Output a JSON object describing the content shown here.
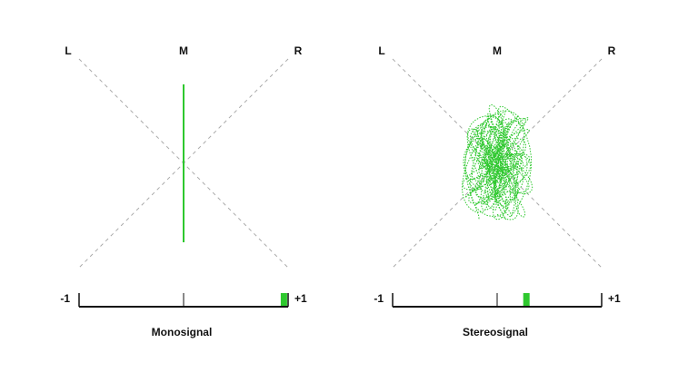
{
  "panels": [
    {
      "labels": {
        "left": "L",
        "mid": "M",
        "right": "R"
      },
      "scale": {
        "min": {
          "value": -1,
          "label": "-1"
        },
        "max": {
          "value": 1,
          "label": "+1"
        }
      },
      "correlation": 0.96,
      "caption": "Monosignal"
    },
    {
      "labels": {
        "left": "L",
        "mid": "M",
        "right": "R"
      },
      "scale": {
        "min": {
          "value": -1,
          "label": "-1"
        },
        "max": {
          "value": 1,
          "label": "+1"
        }
      },
      "correlation": 0.28,
      "caption": "Stereosignal"
    }
  ]
}
